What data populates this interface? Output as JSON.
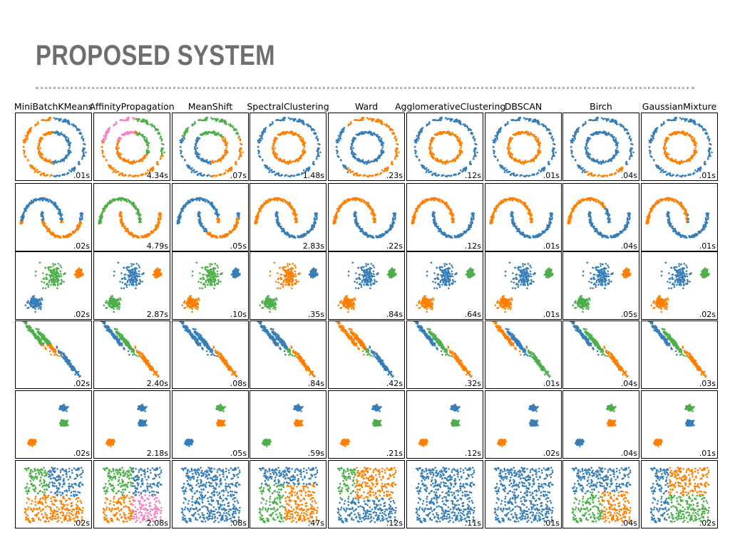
{
  "slide": {
    "title": "PROPOSED SYSTEM"
  },
  "colors": {
    "title": "#6e6e6e",
    "rule": "#b5b5b5",
    "blue": "#377eb8",
    "orange": "#ff7f00",
    "green": "#4daf4a",
    "pink": "#f781bf"
  },
  "algorithms": [
    "MiniBatchKMeans",
    "AffinityPropagation",
    "MeanShift",
    "SpectralClustering",
    "Ward",
    "AgglomerativeClustering",
    "DBSCAN",
    "Birch",
    "GaussianMixture"
  ],
  "datasets": [
    "noisy_circles",
    "noisy_moons",
    "varied",
    "aniso",
    "blobs",
    "no_structure"
  ],
  "timings": [
    [
      ".01s",
      "4.34s",
      ".07s",
      "1.48s",
      ".23s",
      ".12s",
      ".01s",
      ".04s",
      ".01s"
    ],
    [
      ".02s",
      "4.79s",
      ".05s",
      "2.83s",
      ".22s",
      ".12s",
      ".01s",
      ".04s",
      ".01s"
    ],
    [
      ".02s",
      "2.87s",
      ".10s",
      ".35s",
      ".84s",
      ".64s",
      ".01s",
      ".05s",
      ".02s"
    ],
    [
      ".02s",
      "2.40s",
      ".08s",
      ".84s",
      ".42s",
      ".32s",
      ".01s",
      ".04s",
      ".03s"
    ],
    [
      ".02s",
      "2.18s",
      ".05s",
      ".59s",
      ".21s",
      ".12s",
      ".02s",
      ".04s",
      ".01s"
    ],
    [
      ".02s",
      "2.08s",
      ".08s",
      ".47s",
      ".12s",
      ".11s",
      ".01s",
      ".04s",
      ".02s"
    ]
  ]
}
